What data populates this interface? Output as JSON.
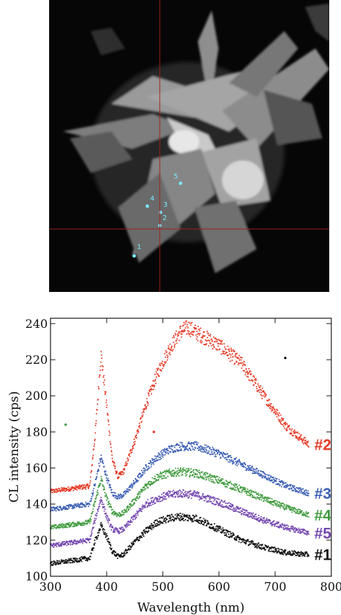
{
  "micrograph": {
    "point_labels": [
      "1",
      "2",
      "3",
      "4",
      "5"
    ]
  },
  "chart_data": {
    "type": "scatter",
    "xlabel": "Wavelength (nm)",
    "ylabel": "CL intensity (cps)",
    "xlim": [
      300,
      800
    ],
    "ylim": [
      100,
      243
    ],
    "x_ticks": [
      300,
      400,
      500,
      600,
      700,
      800
    ],
    "y_ticks": [
      100,
      120,
      140,
      160,
      180,
      200,
      220,
      240
    ],
    "grid": false,
    "series": [
      {
        "name": "#2",
        "color": "#e53a26",
        "baseline": 147,
        "points": [
          [
            300,
            147
          ],
          [
            370,
            150
          ],
          [
            380,
            180
          ],
          [
            390,
            223
          ],
          [
            400,
            195
          ],
          [
            410,
            165
          ],
          [
            420,
            155
          ],
          [
            430,
            158
          ],
          [
            450,
            175
          ],
          [
            470,
            195
          ],
          [
            490,
            212
          ],
          [
            510,
            225
          ],
          [
            530,
            235
          ],
          [
            545,
            238
          ],
          [
            560,
            235
          ],
          [
            600,
            228
          ],
          [
            640,
            218
          ],
          [
            680,
            200
          ],
          [
            720,
            183
          ],
          [
            760,
            173
          ]
        ]
      },
      {
        "name": "#3",
        "color": "#3c5fb4",
        "baseline": 137,
        "points": [
          [
            300,
            137
          ],
          [
            370,
            140
          ],
          [
            380,
            152
          ],
          [
            390,
            166
          ],
          [
            400,
            155
          ],
          [
            410,
            146
          ],
          [
            420,
            144
          ],
          [
            430,
            145
          ],
          [
            450,
            152
          ],
          [
            470,
            160
          ],
          [
            490,
            166
          ],
          [
            510,
            170
          ],
          [
            530,
            172
          ],
          [
            560,
            172
          ],
          [
            600,
            168
          ],
          [
            640,
            162
          ],
          [
            680,
            156
          ],
          [
            720,
            150
          ],
          [
            760,
            146
          ]
        ]
      },
      {
        "name": "#4",
        "color": "#3f9a3d",
        "baseline": 127,
        "points": [
          [
            300,
            127
          ],
          [
            370,
            130
          ],
          [
            380,
            142
          ],
          [
            390,
            154
          ],
          [
            400,
            143
          ],
          [
            410,
            136
          ],
          [
            420,
            134
          ],
          [
            430,
            135
          ],
          [
            450,
            142
          ],
          [
            470,
            150
          ],
          [
            490,
            155
          ],
          [
            510,
            157
          ],
          [
            530,
            158
          ],
          [
            560,
            157
          ],
          [
            600,
            153
          ],
          [
            640,
            148
          ],
          [
            680,
            143
          ],
          [
            720,
            138
          ],
          [
            760,
            134
          ]
        ]
      },
      {
        "name": "#5",
        "color": "#7447b0",
        "baseline": 117,
        "points": [
          [
            300,
            117
          ],
          [
            370,
            120
          ],
          [
            380,
            132
          ],
          [
            390,
            143
          ],
          [
            400,
            133
          ],
          [
            410,
            126
          ],
          [
            420,
            125
          ],
          [
            430,
            126
          ],
          [
            450,
            133
          ],
          [
            470,
            140
          ],
          [
            490,
            143
          ],
          [
            510,
            145
          ],
          [
            530,
            146
          ],
          [
            560,
            145
          ],
          [
            600,
            141
          ],
          [
            640,
            136
          ],
          [
            680,
            131
          ],
          [
            720,
            127
          ],
          [
            760,
            124
          ]
        ]
      },
      {
        "name": "#1",
        "color": "#111111",
        "baseline": 107,
        "points": [
          [
            300,
            107
          ],
          [
            370,
            110
          ],
          [
            380,
            120
          ],
          [
            390,
            128
          ],
          [
            400,
            122
          ],
          [
            410,
            114
          ],
          [
            420,
            111
          ],
          [
            430,
            112
          ],
          [
            450,
            119
          ],
          [
            470,
            125
          ],
          [
            490,
            130
          ],
          [
            510,
            132
          ],
          [
            530,
            133
          ],
          [
            560,
            132
          ],
          [
            600,
            126
          ],
          [
            640,
            120
          ],
          [
            680,
            116
          ],
          [
            720,
            113
          ],
          [
            760,
            112
          ]
        ]
      }
    ],
    "outliers": [
      {
        "x": 327,
        "y": 184,
        "color": "#3f9a3d"
      },
      {
        "x": 718,
        "y": 221,
        "color": "#111111"
      },
      {
        "x": 484,
        "y": 180,
        "color": "#e53a26"
      }
    ]
  }
}
